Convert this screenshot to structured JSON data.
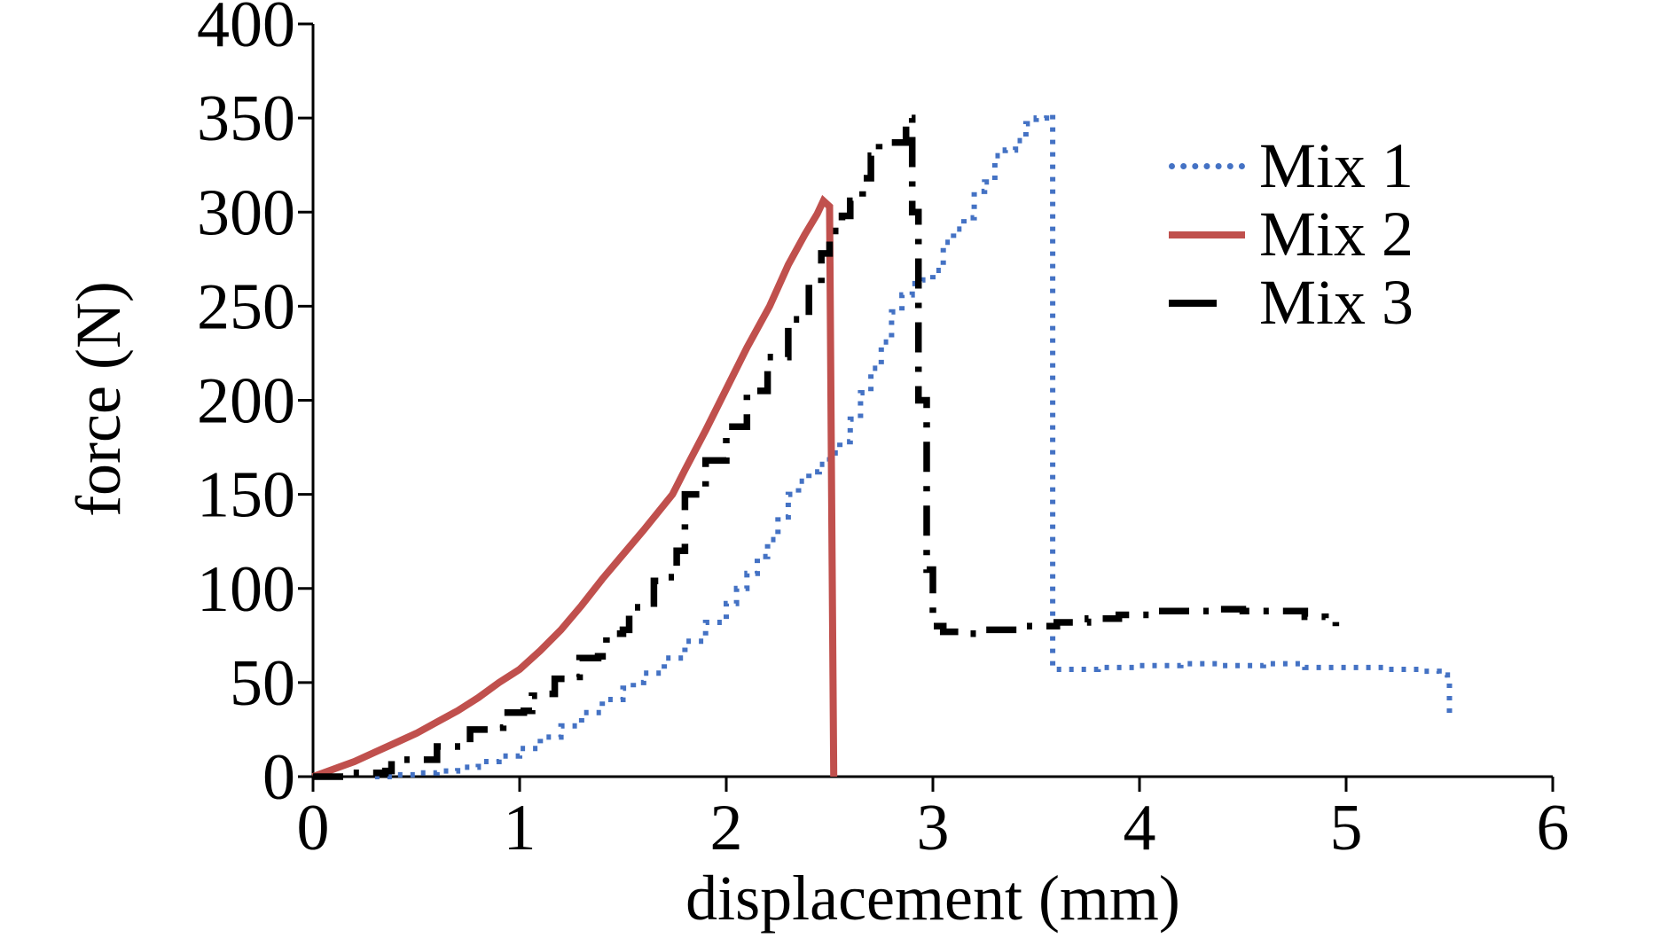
{
  "chart_data": {
    "type": "line",
    "title": "",
    "xlabel": "displacement (mm)",
    "ylabel": "force (N)",
    "xlim": [
      0,
      6
    ],
    "ylim": [
      0,
      400
    ],
    "xticks": [
      0,
      1,
      2,
      3,
      4,
      5,
      6
    ],
    "yticks": [
      0,
      50,
      100,
      150,
      200,
      250,
      300,
      350,
      400
    ],
    "grid": false,
    "legend_position": "upper-right",
    "series": [
      {
        "name": "Mix 1",
        "color": "#4472C4",
        "style": "dotted",
        "stepped": true,
        "points": [
          [
            0.3,
            0
          ],
          [
            0.4,
            1
          ],
          [
            0.5,
            2
          ],
          [
            0.6,
            3
          ],
          [
            0.7,
            5
          ],
          [
            0.8,
            8
          ],
          [
            0.9,
            11
          ],
          [
            1.0,
            15
          ],
          [
            1.1,
            21
          ],
          [
            1.2,
            27
          ],
          [
            1.3,
            34
          ],
          [
            1.4,
            41
          ],
          [
            1.5,
            47
          ],
          [
            1.55,
            50
          ],
          [
            1.6,
            55
          ],
          [
            1.7,
            63
          ],
          [
            1.8,
            72
          ],
          [
            1.9,
            82
          ],
          [
            2.0,
            92
          ],
          [
            2.05,
            100
          ],
          [
            2.1,
            108
          ],
          [
            2.15,
            117
          ],
          [
            2.2,
            126
          ],
          [
            2.25,
            138
          ],
          [
            2.3,
            150
          ],
          [
            2.35,
            157
          ],
          [
            2.4,
            162
          ],
          [
            2.45,
            166
          ],
          [
            2.5,
            172
          ],
          [
            2.55,
            178
          ],
          [
            2.6,
            190
          ],
          [
            2.65,
            204
          ],
          [
            2.7,
            217
          ],
          [
            2.75,
            231
          ],
          [
            2.8,
            247
          ],
          [
            2.85,
            256
          ],
          [
            2.9,
            262
          ],
          [
            2.95,
            264
          ],
          [
            3.0,
            269
          ],
          [
            3.05,
            284
          ],
          [
            3.1,
            291
          ],
          [
            3.15,
            297
          ],
          [
            3.2,
            311
          ],
          [
            3.25,
            316
          ],
          [
            3.3,
            330
          ],
          [
            3.35,
            333
          ],
          [
            3.4,
            338
          ],
          [
            3.45,
            347
          ],
          [
            3.5,
            350
          ],
          [
            3.55,
            352
          ],
          [
            3.58,
            352
          ],
          [
            3.58,
            57
          ],
          [
            3.65,
            57
          ],
          [
            3.8,
            58
          ],
          [
            4.0,
            59
          ],
          [
            4.2,
            60
          ],
          [
            4.4,
            59
          ],
          [
            4.6,
            60
          ],
          [
            4.8,
            58
          ],
          [
            5.0,
            58
          ],
          [
            5.2,
            57
          ],
          [
            5.35,
            56
          ],
          [
            5.45,
            54
          ],
          [
            5.49,
            52
          ],
          [
            5.5,
            33
          ]
        ]
      },
      {
        "name": "Mix 2",
        "color": "#C0504D",
        "style": "solid",
        "stepped": false,
        "points": [
          [
            0,
            0
          ],
          [
            0.1,
            4
          ],
          [
            0.2,
            8
          ],
          [
            0.3,
            13
          ],
          [
            0.4,
            18
          ],
          [
            0.5,
            23
          ],
          [
            0.6,
            29
          ],
          [
            0.7,
            35
          ],
          [
            0.8,
            42
          ],
          [
            0.9,
            50
          ],
          [
            1.0,
            57
          ],
          [
            1.1,
            67
          ],
          [
            1.2,
            78
          ],
          [
            1.3,
            91
          ],
          [
            1.4,
            105
          ],
          [
            1.5,
            118
          ],
          [
            1.6,
            131
          ],
          [
            1.74,
            150
          ],
          [
            1.8,
            163
          ],
          [
            1.9,
            184
          ],
          [
            2.0,
            206
          ],
          [
            2.1,
            228
          ],
          [
            2.21,
            250
          ],
          [
            2.3,
            272
          ],
          [
            2.38,
            288
          ],
          [
            2.44,
            299
          ],
          [
            2.47,
            306
          ],
          [
            2.5,
            303
          ],
          [
            2.51,
            150
          ],
          [
            2.52,
            0
          ]
        ]
      },
      {
        "name": "Mix 3",
        "color": "#000000",
        "style": "dashdot",
        "stepped": true,
        "points": [
          [
            0.0,
            0
          ],
          [
            0.15,
            2
          ],
          [
            0.35,
            3
          ],
          [
            0.38,
            9
          ],
          [
            0.55,
            9
          ],
          [
            0.6,
            16
          ],
          [
            0.72,
            17
          ],
          [
            0.76,
            25
          ],
          [
            0.88,
            26
          ],
          [
            0.92,
            34
          ],
          [
            1.02,
            35
          ],
          [
            1.06,
            43
          ],
          [
            1.14,
            44
          ],
          [
            1.17,
            52
          ],
          [
            1.26,
            53
          ],
          [
            1.29,
            63
          ],
          [
            1.38,
            64
          ],
          [
            1.42,
            76
          ],
          [
            1.5,
            78
          ],
          [
            1.53,
            90
          ],
          [
            1.62,
            92
          ],
          [
            1.65,
            104
          ],
          [
            1.72,
            106
          ],
          [
            1.76,
            120
          ],
          [
            1.8,
            150
          ],
          [
            1.9,
            168
          ],
          [
            2.0,
            186
          ],
          [
            2.1,
            205
          ],
          [
            2.2,
            223
          ],
          [
            2.3,
            243
          ],
          [
            2.4,
            262
          ],
          [
            2.46,
            278
          ],
          [
            2.5,
            290
          ],
          [
            2.56,
            298
          ],
          [
            2.6,
            306
          ],
          [
            2.66,
            318
          ],
          [
            2.7,
            330
          ],
          [
            2.74,
            337
          ],
          [
            2.84,
            337
          ],
          [
            2.87,
            350
          ],
          [
            2.9,
            350
          ],
          [
            2.9,
            300
          ],
          [
            2.93,
            300
          ],
          [
            2.93,
            200
          ],
          [
            2.97,
            200
          ],
          [
            2.97,
            110
          ],
          [
            3.0,
            110
          ],
          [
            3.0,
            80
          ],
          [
            3.05,
            77
          ],
          [
            3.15,
            76
          ],
          [
            3.25,
            78
          ],
          [
            3.35,
            78
          ],
          [
            3.45,
            80
          ],
          [
            3.6,
            82
          ],
          [
            3.75,
            84
          ],
          [
            3.9,
            86
          ],
          [
            4.05,
            88
          ],
          [
            4.2,
            88
          ],
          [
            4.35,
            89
          ],
          [
            4.5,
            88
          ],
          [
            4.65,
            88
          ],
          [
            4.8,
            85
          ],
          [
            4.9,
            84
          ],
          [
            4.95,
            80
          ]
        ]
      }
    ]
  }
}
